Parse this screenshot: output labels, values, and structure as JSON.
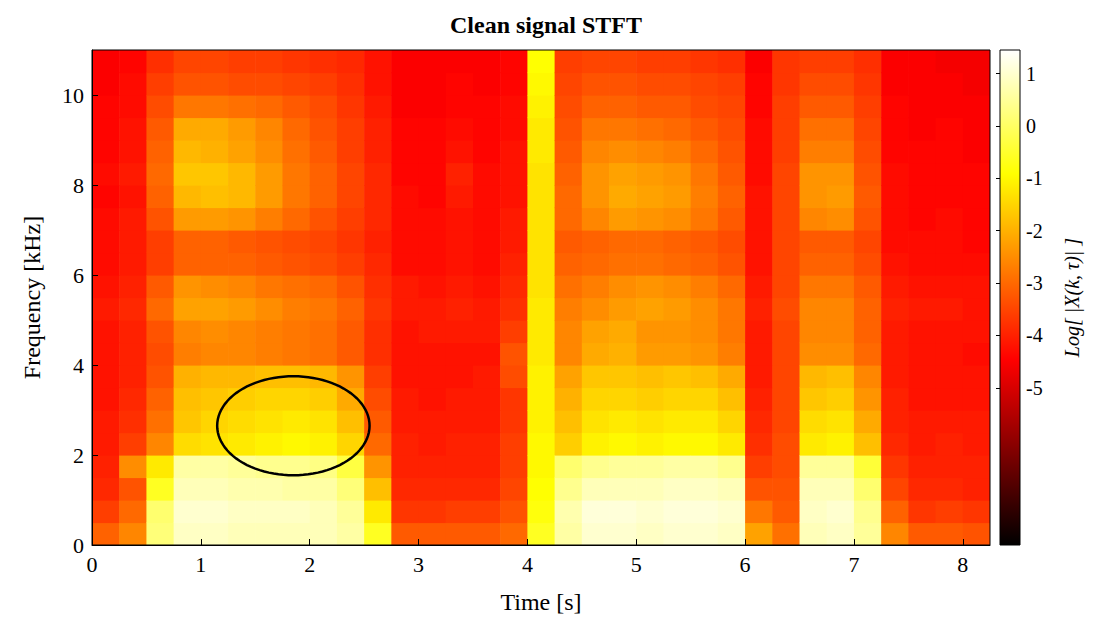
{
  "chart_data": {
    "type": "heatmap",
    "title": "Clean signal STFT",
    "x_label": "Time [s]",
    "y_label": "Frequency [kHz]",
    "xlim": [
      0,
      8.25
    ],
    "xticks": [
      0,
      1,
      2,
      3,
      4,
      5,
      6,
      7,
      8
    ],
    "ylim": [
      0,
      11
    ],
    "yticks": [
      0,
      2,
      4,
      6,
      8,
      10
    ],
    "grid": false,
    "time_edges": [
      0,
      0.25,
      0.5,
      0.75,
      1,
      1.25,
      1.5,
      1.75,
      2,
      2.25,
      2.5,
      2.75,
      3,
      3.25,
      3.5,
      3.75,
      4,
      4.25,
      4.5,
      4.75,
      5,
      5.25,
      5.5,
      5.75,
      6,
      6.25,
      6.5,
      6.75,
      7,
      7.25,
      7.5,
      7.75,
      8,
      8.25
    ],
    "frequency_edges": [
      0,
      0.5,
      1,
      1.5,
      2,
      2.5,
      3,
      3.5,
      4,
      4.5,
      5,
      5.5,
      6,
      6.5,
      7,
      7.5,
      8,
      8.5,
      9,
      9.5,
      10,
      10.5,
      11
    ],
    "values": [
      [
        -3.1,
        -3.6,
        -3.9,
        -4.0,
        -4.1,
        -4.1,
        -4.2,
        -4.2,
        -4.2,
        -4.2,
        -4.1,
        -4.2,
        -4.3,
        -4.3,
        -4.3,
        -4.4,
        -4.3,
        -4.4,
        -4.4,
        -4.4,
        -4.5,
        -4.5
      ],
      [
        -2.6,
        -3.0,
        -3.3,
        -2.5,
        -3.6,
        -3.8,
        -3.9,
        -4.0,
        -4.0,
        -4.0,
        -3.9,
        -4.0,
        -4.1,
        -4.1,
        -4.1,
        -4.2,
        -4.1,
        -4.2,
        -4.2,
        -4.3,
        -4.3,
        -4.4
      ],
      [
        0.2,
        0.1,
        -0.6,
        -1.2,
        -2.6,
        -2.9,
        -3.1,
        -3.3,
        -3.4,
        -3.3,
        -3.0,
        -3.2,
        -3.6,
        -3.6,
        -3.3,
        -3.1,
        -3.0,
        -3.1,
        -3.2,
        -3.4,
        -3.6,
        -3.8
      ],
      [
        0.9,
        1.0,
        0.8,
        0.6,
        -1.4,
        -1.7,
        -1.8,
        -2.0,
        -2.7,
        -2.6,
        -2.2,
        -2.4,
        -3.1,
        -3.1,
        -2.3,
        -1.9,
        -1.7,
        -1.9,
        -2.1,
        -2.8,
        -3.3,
        -3.5
      ],
      [
        0.9,
        1.0,
        0.8,
        0.6,
        -1.3,
        -1.5,
        -1.7,
        -1.9,
        -2.6,
        -2.5,
        -2.2,
        -2.5,
        -3.1,
        -3.1,
        -2.3,
        -1.8,
        -1.7,
        -2.0,
        -2.1,
        -2.8,
        -3.3,
        -3.5
      ],
      [
        0.8,
        0.9,
        0.7,
        0.5,
        -1.2,
        -1.4,
        -1.6,
        -1.9,
        -2.6,
        -2.6,
        -2.3,
        -2.6,
        -3.1,
        -3.2,
        -2.4,
        -1.9,
        -1.9,
        -2.2,
        -2.3,
        -2.9,
        -3.4,
        -3.6
      ],
      [
        0.8,
        0.9,
        0.7,
        0.4,
        -1.1,
        -1.3,
        -1.5,
        -1.8,
        -2.7,
        -2.7,
        -2.5,
        -2.8,
        -3.2,
        -3.3,
        -2.7,
        -2.3,
        -2.3,
        -2.5,
        -2.6,
        -3.0,
        -3.4,
        -3.6
      ],
      [
        0.8,
        0.9,
        0.6,
        0.4,
        -1.0,
        -1.2,
        -1.5,
        -1.8,
        -2.8,
        -2.8,
        -2.7,
        -2.9,
        -3.3,
        -3.4,
        -3.0,
        -2.8,
        -2.8,
        -2.9,
        -3.0,
        -3.2,
        -3.5,
        -3.7
      ],
      [
        0.8,
        0.8,
        0.6,
        0.3,
        -1.1,
        -1.3,
        -1.6,
        -1.9,
        -2.9,
        -2.9,
        -2.8,
        -3.0,
        -3.4,
        -3.5,
        -3.3,
        -3.1,
        -3.1,
        -3.2,
        -3.3,
        -3.4,
        -3.6,
        -3.8
      ],
      [
        0.6,
        0.5,
        0.2,
        -0.3,
        -1.5,
        -1.8,
        -2.1,
        -2.4,
        -3.2,
        -3.2,
        -3.1,
        -3.3,
        -3.6,
        -3.7,
        -3.6,
        -3.5,
        -3.5,
        -3.6,
        -3.6,
        -3.7,
        -3.8,
        -3.9
      ],
      [
        -0.6,
        -1.2,
        -1.8,
        -2.4,
        -3.0,
        -3.2,
        -3.4,
        -3.6,
        -3.8,
        -3.8,
        -3.7,
        -3.8,
        -3.9,
        -4.0,
        -3.9,
        -3.9,
        -3.9,
        -4.0,
        -4.0,
        -4.1,
        -4.2,
        -4.2
      ],
      [
        -3.2,
        -3.7,
        -3.9,
        -4.0,
        -4.0,
        -4.1,
        -4.1,
        -4.2,
        -4.2,
        -4.2,
        -4.1,
        -4.1,
        -4.3,
        -4.3,
        -4.3,
        -4.3,
        -4.4,
        -4.4,
        -4.4,
        -4.5,
        -4.5,
        -4.5
      ],
      [
        -3.2,
        -3.7,
        -3.9,
        -4.0,
        -4.1,
        -4.1,
        -4.2,
        -4.2,
        -4.2,
        -4.1,
        -4.1,
        -4.2,
        -4.3,
        -4.3,
        -4.3,
        -4.4,
        -4.4,
        -4.4,
        -4.4,
        -4.5,
        -4.5,
        -4.5
      ],
      [
        -3.2,
        -3.6,
        -3.9,
        -4.0,
        -4.0,
        -4.1,
        -4.1,
        -4.2,
        -4.2,
        -4.1,
        -4.0,
        -4.1,
        -4.2,
        -4.2,
        -4.2,
        -4.1,
        -4.0,
        -4.2,
        -4.3,
        -4.4,
        -4.4,
        -4.5
      ],
      [
        -3.2,
        -3.6,
        -3.9,
        -4.0,
        -4.0,
        -4.1,
        -4.1,
        -4.1,
        -4.2,
        -4.1,
        -4.1,
        -4.2,
        -4.3,
        -4.3,
        -4.3,
        -4.3,
        -4.3,
        -4.4,
        -4.4,
        -4.4,
        -4.5,
        -4.5
      ],
      [
        -3.0,
        -3.3,
        -3.5,
        -3.6,
        -3.6,
        -3.7,
        -3.7,
        -3.4,
        -3.3,
        -3.6,
        -3.8,
        -3.9,
        -4.0,
        -4.1,
        -4.1,
        -4.2,
        -4.2,
        -4.2,
        -4.3,
        -4.3,
        -4.4,
        -4.4
      ],
      [
        -0.6,
        -0.8,
        -0.9,
        -1.0,
        -1.0,
        -1.1,
        -1.1,
        -1.1,
        -1.2,
        -1.2,
        -1.2,
        -1.3,
        -1.3,
        -1.3,
        -1.3,
        -1.3,
        -1.3,
        -1.2,
        -1.2,
        -1.1,
        -1.0,
        -0.9
      ],
      [
        0.6,
        0.7,
        0.4,
        0.1,
        -1.6,
        -1.8,
        -2.0,
        -2.2,
        -2.6,
        -2.6,
        -2.7,
        -2.9,
        -3.1,
        -3.2,
        -3.0,
        -3.0,
        -3.1,
        -3.2,
        -3.3,
        -3.4,
        -3.5,
        -3.6
      ],
      [
        1.0,
        1.1,
        0.8,
        0.4,
        -1.1,
        -1.3,
        -1.5,
        -1.7,
        -2.1,
        -2.2,
        -2.5,
        -2.7,
        -3.0,
        -3.1,
        -2.6,
        -2.4,
        -2.4,
        -2.6,
        -2.8,
        -3.1,
        -3.3,
        -3.5
      ],
      [
        1.0,
        1.1,
        0.8,
        0.5,
        -1.0,
        -1.2,
        -1.5,
        -1.7,
        -2.0,
        -2.1,
        -2.3,
        -2.5,
        -2.9,
        -3.0,
        -2.3,
        -2.1,
        -2.2,
        -2.5,
        -2.8,
        -3.1,
        -3.3,
        -3.5
      ],
      [
        0.9,
        1.0,
        0.8,
        0.5,
        -1.1,
        -1.3,
        -1.6,
        -1.8,
        -2.3,
        -2.4,
        -2.2,
        -2.4,
        -2.9,
        -3.0,
        -2.4,
        -2.2,
        -2.3,
        -2.6,
        -2.9,
        -3.2,
        -3.4,
        -3.6
      ],
      [
        1.0,
        1.1,
        0.9,
        0.6,
        -1.0,
        -1.2,
        -1.5,
        -1.7,
        -2.3,
        -2.4,
        -2.3,
        -2.5,
        -3.0,
        -3.1,
        -2.5,
        -2.3,
        -2.4,
        -2.7,
        -3.0,
        -3.2,
        -3.4,
        -3.6
      ],
      [
        1.0,
        1.1,
        0.9,
        0.6,
        -1.0,
        -1.2,
        -1.5,
        -1.8,
        -2.4,
        -2.5,
        -2.5,
        -2.7,
        -3.1,
        -3.2,
        -2.8,
        -2.7,
        -2.8,
        -3.0,
        -3.2,
        -3.4,
        -3.5,
        -3.7
      ],
      [
        0.9,
        1.0,
        0.8,
        0.4,
        -1.2,
        -1.5,
        -1.8,
        -2.1,
        -2.7,
        -2.8,
        -2.8,
        -3.0,
        -3.3,
        -3.4,
        -3.2,
        -3.1,
        -3.2,
        -3.3,
        -3.4,
        -3.5,
        -3.6,
        -3.8
      ],
      [
        -2.2,
        -2.8,
        -3.3,
        -3.6,
        -3.8,
        -3.9,
        -4.0,
        -4.1,
        -4.1,
        -4.1,
        -4.0,
        -4.1,
        -4.2,
        -4.2,
        -4.2,
        -4.2,
        -4.3,
        -4.3,
        -4.3,
        -4.4,
        -4.4,
        -4.5
      ],
      [
        -2.9,
        -3.2,
        -3.3,
        -3.4,
        -3.4,
        -3.5,
        -3.5,
        -3.5,
        -3.5,
        -3.5,
        -3.4,
        -3.5,
        -3.5,
        -3.5,
        -3.5,
        -3.5,
        -3.5,
        -3.6,
        -3.6,
        -3.6,
        -3.7,
        -3.7
      ],
      [
        0.8,
        0.9,
        0.8,
        0.5,
        -1.2,
        -1.4,
        -1.7,
        -1.9,
        -2.5,
        -2.6,
        -2.6,
        -2.8,
        -3.1,
        -3.2,
        -2.6,
        -2.4,
        -2.4,
        -2.7,
        -2.9,
        -3.2,
        -3.4,
        -3.6
      ],
      [
        0.9,
        1.0,
        0.8,
        0.5,
        -1.1,
        -1.3,
        -1.6,
        -1.8,
        -2.5,
        -2.6,
        -2.6,
        -2.8,
        -3.1,
        -3.2,
        -2.5,
        -2.3,
        -2.4,
        -2.7,
        -2.9,
        -3.2,
        -3.4,
        -3.6
      ],
      [
        0.5,
        0.4,
        0.1,
        -0.4,
        -1.8,
        -2.1,
        -2.4,
        -2.6,
        -3.0,
        -3.1,
        -3.1,
        -3.2,
        -3.4,
        -3.5,
        -3.3,
        -3.2,
        -3.3,
        -3.4,
        -3.5,
        -3.6,
        -3.7,
        -3.8
      ],
      [
        -2.6,
        -3.1,
        -3.5,
        -3.7,
        -3.9,
        -4.0,
        -4.0,
        -4.1,
        -4.1,
        -4.1,
        -4.0,
        -4.1,
        -4.2,
        -4.3,
        -4.3,
        -4.3,
        -4.3,
        -4.4,
        -4.4,
        -4.4,
        -4.5,
        -4.5
      ],
      [
        -3.2,
        -3.7,
        -3.9,
        -4.0,
        -4.1,
        -4.1,
        -4.2,
        -4.2,
        -4.2,
        -4.2,
        -4.1,
        -4.2,
        -4.3,
        -4.3,
        -4.4,
        -4.4,
        -4.4,
        -4.4,
        -4.5,
        -4.5,
        -4.5,
        -4.5
      ],
      [
        -3.2,
        -3.6,
        -3.9,
        -4.0,
        -4.0,
        -4.1,
        -4.2,
        -4.2,
        -4.2,
        -4.2,
        -4.1,
        -4.2,
        -4.3,
        -4.3,
        -4.3,
        -4.4,
        -4.4,
        -4.4,
        -4.4,
        -4.5,
        -4.5,
        -4.6
      ],
      [
        -3.3,
        -3.7,
        -4.0,
        -4.0,
        -4.1,
        -4.1,
        -4.2,
        -4.2,
        -4.3,
        -4.2,
        -4.2,
        -4.2,
        -4.3,
        -4.4,
        -4.4,
        -4.4,
        -4.4,
        -4.5,
        -4.5,
        -4.5,
        -4.6,
        -4.6
      ]
    ],
    "colorbar": {
      "label": "Log[ |X(k, τ)| ]",
      "range": [
        -8,
        1.45
      ],
      "ticks": [
        -5,
        -4,
        -3,
        -2,
        -1,
        0,
        1
      ]
    },
    "annotations": [
      {
        "shape": "ellipse",
        "x": [
          1.15,
          2.55
        ],
        "y": [
          1.55,
          3.75
        ]
      }
    ]
  }
}
